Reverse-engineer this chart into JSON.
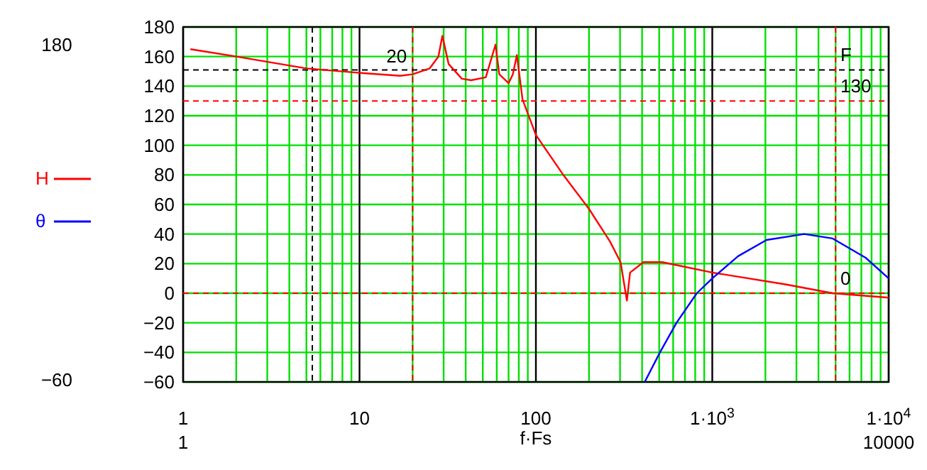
{
  "chart_data": {
    "type": "line",
    "xlabel": "f·Fs",
    "log": "x",
    "grid": true,
    "legend": "left",
    "line_style": "solid",
    "xlim": [
      1,
      10000
    ],
    "xticks": [
      1,
      10,
      100,
      {
        "value": 1000,
        "label": "1·10$^{3}$"
      },
      {
        "value": 10000,
        "label": "1·10$^{4}$"
      }
    ],
    "ylim": [
      -60,
      180
    ],
    "yticks": [
      {
        "value": -60,
        "label": "−60"
      },
      {
        "value": -40,
        "label": "−40"
      },
      {
        "value": -20,
        "label": "−20"
      },
      0,
      20,
      40,
      60,
      80,
      100,
      120,
      140,
      160,
      180
    ],
    "series": [
      {
        "name": "H",
        "color": "#ff0000",
        "x": [
          1.1,
          2,
          5,
          10,
          17,
          20,
          25,
          28,
          29.5,
          32,
          38,
          43,
          52,
          59,
          62,
          70,
          74,
          78,
          84,
          100,
          143,
          200,
          263,
          302,
          328,
          342,
          407,
          521,
          1000,
          2594,
          4815,
          10000
        ],
        "values": [
          165,
          160,
          152,
          149,
          147,
          148,
          152,
          160,
          174,
          155,
          145,
          144,
          146,
          168,
          148,
          142,
          148,
          161,
          131,
          107,
          80,
          57,
          35,
          21,
          -5,
          14,
          21,
          21,
          14,
          6,
          0,
          -3
        ]
      },
      {
        "name": "θ",
        "color": "#0000ff",
        "x": [
          414,
          505,
          627,
          817,
          1000,
          1400,
          2030,
          3320,
          4815,
          7400,
          10000
        ],
        "values": [
          -60,
          -40,
          -20,
          0,
          10,
          25,
          36,
          40,
          37,
          24,
          10
        ]
      }
    ],
    "ref_lines": [
      {
        "axis": "x",
        "value": 20,
        "label": "20",
        "color": "#ff0000",
        "line_style": "dashed"
      },
      {
        "axis": "x",
        "value": 5000,
        "color": "#ff0000",
        "line_style": "dashed"
      },
      {
        "axis": "x",
        "value": 5.4,
        "color": "#000000",
        "line_style": "dashed"
      },
      {
        "axis": "y",
        "value": 151,
        "label": "F",
        "color": "#000000",
        "line_style": "dashed"
      },
      {
        "axis": "y",
        "value": 130,
        "label": "130",
        "color": "#ff0000",
        "line_style": "dashed"
      },
      {
        "axis": "y",
        "value": 0,
        "label": "0",
        "color": "#ff0000",
        "line_style": "dashed"
      }
    ],
    "annotations": [
      "180",
      "−60",
      "1",
      "10000"
    ]
  }
}
